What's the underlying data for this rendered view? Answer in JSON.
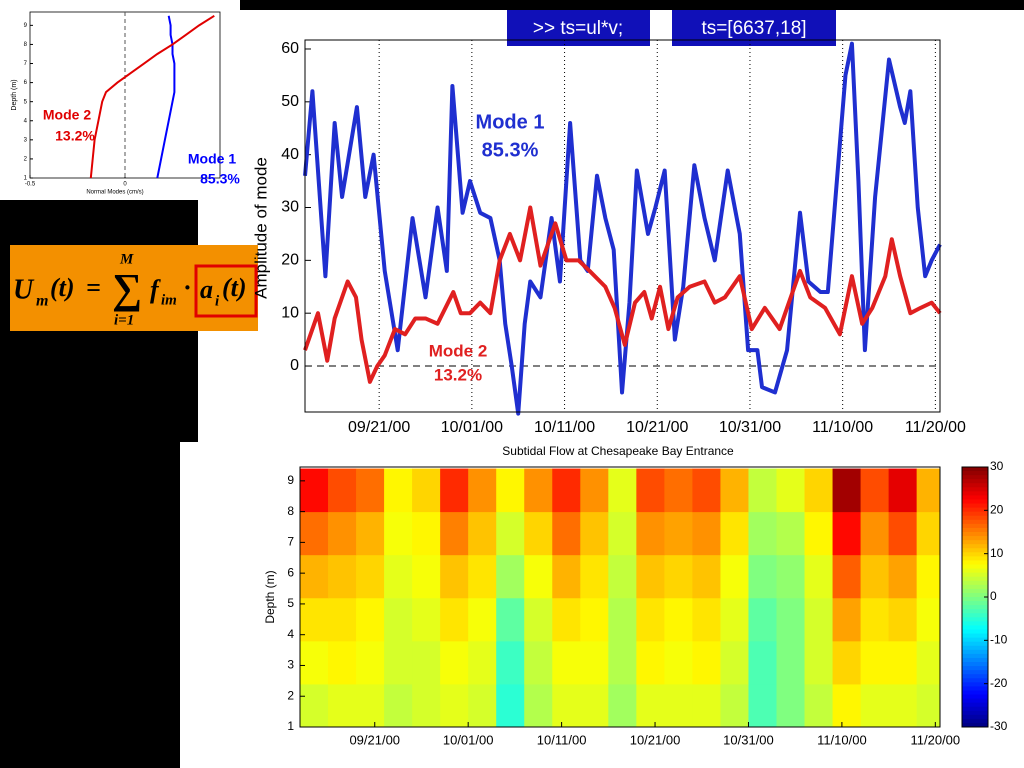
{
  "commands": [
    ">> ts=ul*v;",
    "ts=[6637,18]"
  ],
  "formula": [
    "U",
    "m",
    "(t)",
    "=",
    "∑",
    "M",
    "i=1",
    "f",
    "im",
    "·",
    "a",
    "i",
    "(t)"
  ],
  "chart_data": [
    {
      "type": "profile",
      "x_label": "Normal Modes (cm/s)",
      "y_label": "Depth (m)",
      "xlim": [
        -0.5,
        0.5
      ],
      "xticks": [
        -0.5,
        0
      ],
      "ylim": [
        1,
        9.7
      ],
      "yticks": [
        1,
        2,
        3,
        4,
        5,
        6,
        7,
        8,
        9
      ],
      "depth": [
        1,
        2,
        3,
        4,
        5,
        5.5,
        6,
        6.5,
        7,
        7.5,
        8,
        8.5,
        9,
        9.5
      ],
      "series": [
        {
          "name": "Mode 1",
          "color": "#0000ff",
          "values": [
            0.17,
            0.19,
            0.21,
            0.23,
            0.25,
            0.26,
            0.26,
            0.26,
            0.26,
            0.25,
            0.25,
            0.24,
            0.24,
            0.23
          ]
        },
        {
          "name": "Mode 2",
          "color": "#e00000",
          "values": [
            -0.18,
            -0.17,
            -0.16,
            -0.14,
            -0.12,
            -0.1,
            -0.04,
            0.03,
            0.1,
            0.17,
            0.25,
            0.32,
            0.39,
            0.47
          ]
        }
      ],
      "annotations": [
        {
          "text": "Mode 2",
          "color": "#e00000"
        },
        {
          "text": "13.2%",
          "color": "#e00000"
        },
        {
          "text": "Mode 1",
          "color": "#0000ff"
        },
        {
          "text": "85.3%",
          "color": "#0000ff"
        }
      ]
    },
    {
      "type": "line",
      "y_label": "Amplitude of mode",
      "x_label": "Subtidal Flow at Chesapeake Bay Entrance",
      "xlim": [
        257,
        325.5
      ],
      "ylim": [
        -8.7,
        61.7
      ],
      "yticks": [
        0,
        10,
        20,
        30,
        40,
        50,
        60
      ],
      "xticks": [
        {
          "value": 265,
          "label": "09/21/00"
        },
        {
          "value": 275,
          "label": "10/01/00"
        },
        {
          "value": 285,
          "label": "10/11/00"
        },
        {
          "value": 295,
          "label": "10/21/00"
        },
        {
          "value": 305,
          "label": "10/31/00"
        },
        {
          "value": 315,
          "label": "11/10/00"
        },
        {
          "value": 325,
          "label": "11/20/00"
        }
      ],
      "series": [
        {
          "name": "Mode 1",
          "color": "#1f2fd0",
          "x": [
            257,
            257.8,
            259.2,
            260.2,
            261,
            262.6,
            263.5,
            264.4,
            265.6,
            267,
            268.6,
            270,
            271.3,
            272.3,
            272.9,
            274,
            274.8,
            275.9,
            277,
            278,
            278.6,
            279.3,
            280,
            280.7,
            281.3,
            282.4,
            283.6,
            284.5,
            285.6,
            286.7,
            287.5,
            288.5,
            289.4,
            290.3,
            291.2,
            292,
            292.8,
            294,
            294.8,
            295.8,
            296.9,
            297.8,
            299,
            300.1,
            301.2,
            302.6,
            303.9,
            304.8,
            305.8,
            306.3,
            307.7,
            309,
            310.4,
            311.3,
            312.6,
            313.4,
            315.3,
            316,
            316.7,
            317.4,
            318.5,
            320,
            321.2,
            321.7,
            322.3,
            323.1,
            323.9,
            324.6,
            325.5
          ],
          "values": [
            36,
            52,
            17,
            46,
            32,
            49,
            32,
            40,
            18,
            3,
            28,
            13,
            30,
            18,
            53,
            29,
            35,
            29,
            28,
            20,
            8,
            0,
            -9,
            8,
            16,
            13,
            28,
            16,
            46,
            20,
            18,
            36,
            28,
            22,
            -5,
            12,
            37,
            25,
            30,
            37,
            5,
            15,
            38,
            28,
            20,
            37,
            25,
            3,
            3,
            -4,
            -5,
            3,
            29,
            16,
            14,
            14,
            55,
            61,
            35,
            3,
            32,
            58,
            49,
            46,
            52,
            30,
            17,
            20,
            23
          ]
        },
        {
          "name": "Mode 2",
          "color": "#e02020",
          "x": [
            257,
            258.4,
            259.4,
            260.2,
            261.6,
            262.5,
            263.1,
            264,
            264.8,
            265.6,
            266.7,
            267.8,
            268.9,
            270,
            271.3,
            273,
            273.8,
            274.8,
            275.9,
            277,
            278,
            279.1,
            280.2,
            281.3,
            282.4,
            284,
            285.2,
            286.5,
            287.7,
            289.4,
            290.4,
            291.5,
            292.6,
            293.6,
            294.4,
            295.3,
            296.2,
            297.2,
            298.5,
            300.1,
            301.2,
            302.3,
            303.9,
            305.2,
            306.6,
            308.2,
            310.4,
            311.5,
            313.1,
            314.7,
            316,
            317.1,
            318.2,
            319.6,
            320.3,
            321.2,
            322.3,
            323.4,
            324.6,
            325.5
          ],
          "values": [
            3,
            10,
            1,
            9,
            16,
            13,
            5,
            -3,
            0,
            2,
            7,
            6,
            9,
            9,
            8,
            14,
            10,
            10,
            12,
            10,
            20,
            25,
            20,
            30,
            19,
            27,
            20,
            20,
            18,
            15,
            11,
            4,
            12,
            14,
            9,
            15,
            7,
            13,
            15,
            16,
            12,
            13,
            17,
            7,
            11,
            7,
            18,
            13,
            11,
            6,
            17,
            8,
            11,
            17,
            24,
            17,
            10,
            11,
            12,
            10
          ]
        }
      ],
      "annotations": [
        {
          "text": "Mode 1",
          "color": "#1f2fd0"
        },
        {
          "text": "85.3%",
          "color": "#1f2fd0"
        },
        {
          "text": "Mode 2",
          "color": "#e02020"
        },
        {
          "text": "13.2%",
          "color": "#e02020"
        }
      ]
    },
    {
      "type": "heatmap",
      "y_label": "Depth (m)",
      "xlim": [
        257,
        325.5
      ],
      "ylim": [
        1,
        9.45
      ],
      "yticks": [
        1,
        2,
        3,
        4,
        5,
        6,
        7,
        8,
        9
      ],
      "xticks": [
        {
          "value": 265,
          "label": "09/21/00"
        },
        {
          "value": 275,
          "label": "10/01/00"
        },
        {
          "value": 285,
          "label": "10/11/00"
        },
        {
          "value": 295,
          "label": "10/21/00"
        },
        {
          "value": 305,
          "label": "10/31/00"
        },
        {
          "value": 315,
          "label": "11/10/00"
        },
        {
          "value": 325,
          "label": "11/20/00"
        }
      ],
      "x": [
        258.5,
        261.5,
        264.5,
        267.5,
        270.5,
        273.5,
        276.5,
        279.5,
        282.5,
        285.5,
        288.5,
        291.5,
        294.5,
        297.5,
        300.5,
        303.5,
        306.5,
        309.5,
        312.5,
        315.5,
        318.5,
        321.5,
        324.5
      ],
      "y": [
        1.7,
        3.1,
        4.5,
        5.9,
        7.3,
        8.7
      ],
      "z": [
        [
          5,
          6,
          6,
          4,
          5,
          6,
          5,
          -5,
          3,
          6,
          6,
          2,
          6,
          6,
          6,
          4,
          -3,
          0,
          4,
          8,
          6,
          6,
          5
        ],
        [
          7,
          8,
          7,
          5,
          5,
          7,
          6,
          -4,
          4,
          7,
          7,
          3,
          8,
          7,
          8,
          5,
          -3,
          0,
          5,
          10,
          8,
          8,
          6
        ],
        [
          9,
          9,
          8,
          5,
          6,
          9,
          7,
          -2,
          5,
          9,
          8,
          3,
          9,
          8,
          9,
          6,
          -2,
          0,
          5,
          13,
          9,
          10,
          7
        ],
        [
          12,
          11,
          10,
          6,
          7,
          11,
          9,
          2,
          7,
          12,
          9,
          4,
          11,
          10,
          11,
          7,
          0,
          1,
          6,
          17,
          11,
          13,
          8
        ],
        [
          16,
          14,
          12,
          7,
          8,
          15,
          11,
          5,
          10,
          16,
          11,
          5,
          14,
          13,
          14,
          9,
          2,
          3,
          8,
          22,
          14,
          18,
          10
        ],
        [
          22,
          18,
          16,
          8,
          10,
          20,
          14,
          8,
          14,
          20,
          14,
          6,
          18,
          16,
          18,
          12,
          4,
          6,
          10,
          28,
          18,
          24,
          12
        ]
      ],
      "clim": [
        -30,
        30
      ],
      "cticks": [
        30,
        20,
        10,
        0,
        -10,
        -20,
        -30
      ]
    }
  ]
}
